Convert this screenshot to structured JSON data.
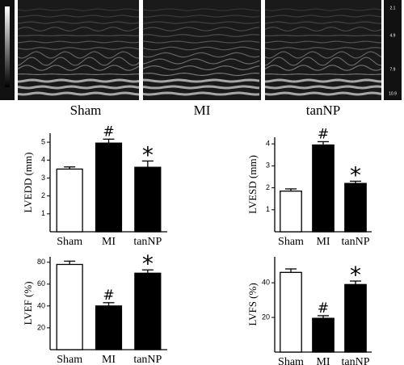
{
  "images": {
    "labels": [
      "Sham",
      "MI",
      "tanNP"
    ],
    "scale_labels": [
      "2.1",
      "4.9",
      "7.9",
      "10.9"
    ]
  },
  "chart_data": [
    {
      "type": "bar",
      "ylabel": "LVEDD (mm)",
      "categories": [
        "Sham",
        "MI",
        "tanNP"
      ],
      "values": [
        3.5,
        4.95,
        3.6
      ],
      "errors": [
        0.12,
        0.22,
        0.35
      ],
      "annotations": [
        null,
        "#",
        "*"
      ],
      "colors": [
        "#ffffff",
        "#000000",
        "#000000"
      ],
      "ylim": [
        0,
        5.5
      ],
      "yticks": [
        1,
        2,
        3,
        4,
        5
      ]
    },
    {
      "type": "bar",
      "ylabel": "LVESD (mm)",
      "categories": [
        "Sham",
        "MI",
        "tanNP"
      ],
      "values": [
        1.85,
        3.95,
        2.2
      ],
      "errors": [
        0.1,
        0.15,
        0.1
      ],
      "annotations": [
        null,
        "#",
        "*"
      ],
      "colors": [
        "#ffffff",
        "#000000",
        "#000000"
      ],
      "ylim": [
        0,
        4.3
      ],
      "yticks": [
        1,
        2,
        3,
        4
      ]
    },
    {
      "type": "bar",
      "ylabel": "LVEF (%)",
      "categories": [
        "Sham",
        "MI",
        "tanNP"
      ],
      "values": [
        78,
        40,
        70
      ],
      "errors": [
        3,
        3,
        3
      ],
      "annotations": [
        null,
        "#",
        "*"
      ],
      "colors": [
        "#ffffff",
        "#000000",
        "#000000"
      ],
      "ylim": [
        0,
        85
      ],
      "yticks": [
        20,
        40,
        60,
        80
      ]
    },
    {
      "type": "bar",
      "ylabel": "LVFS (%)",
      "categories": [
        "Sham",
        "MI",
        "tanNP"
      ],
      "values": [
        46,
        19.5,
        39
      ],
      "errors": [
        2,
        1.5,
        2
      ],
      "annotations": [
        null,
        "#",
        "*"
      ],
      "colors": [
        "#ffffff",
        "#000000",
        "#000000"
      ],
      "ylim": [
        0,
        55
      ],
      "yticks": [
        20,
        40
      ]
    }
  ]
}
